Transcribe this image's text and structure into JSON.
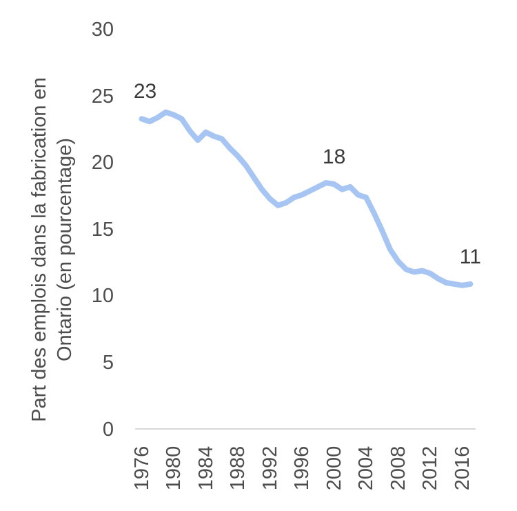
{
  "chart_data": {
    "type": "line",
    "title": "",
    "ylabel_line1": "Part des emplois dans la fabrication en",
    "ylabel_line2": "Ontario (en pourcentage)",
    "xlabel": "",
    "x": [
      1976,
      1977,
      1978,
      1979,
      1980,
      1981,
      1982,
      1983,
      1984,
      1985,
      1986,
      1987,
      1988,
      1989,
      1990,
      1991,
      1992,
      1993,
      1994,
      1995,
      1996,
      1997,
      1998,
      1999,
      2000,
      2001,
      2002,
      2003,
      2004,
      2005,
      2006,
      2007,
      2008,
      2009,
      2010,
      2011,
      2012,
      2013,
      2014,
      2015,
      2016,
      2017
    ],
    "series": [
      {
        "name": "Part des emplois dans la fabrication en Ontario (en pourcentage)",
        "values": [
          23.3,
          23.1,
          23.4,
          23.8,
          23.6,
          23.3,
          22.4,
          21.7,
          22.3,
          22.0,
          21.8,
          21.1,
          20.5,
          19.8,
          18.9,
          18.0,
          17.3,
          16.8,
          17.0,
          17.4,
          17.6,
          17.9,
          18.2,
          18.5,
          18.4,
          18.0,
          18.2,
          17.6,
          17.4,
          16.2,
          14.9,
          13.5,
          12.6,
          12.0,
          11.8,
          11.9,
          11.7,
          11.3,
          11.0,
          10.9,
          10.8,
          10.9
        ]
      }
    ],
    "y_ticks": [
      30,
      25,
      20,
      15,
      10,
      5,
      0
    ],
    "x_tick_labels": [
      "1976",
      "1980",
      "1984",
      "1988",
      "1992",
      "1996",
      "2000",
      "2004",
      "2008",
      "2012",
      "2016"
    ],
    "ylim": [
      0,
      30
    ],
    "grid": "off",
    "legend_position": "none",
    "point_labels": [
      {
        "year": 1976,
        "text": "23"
      },
      {
        "year": 2000,
        "text": "18"
      },
      {
        "year": 2017,
        "text": "11"
      }
    ],
    "colors": {
      "line": "#a7c5f2",
      "axis_line": "#d9d9d9",
      "tick_text": "#4d4d4d",
      "label_text": "#3a3a3a",
      "background": "#ffffff"
    }
  }
}
